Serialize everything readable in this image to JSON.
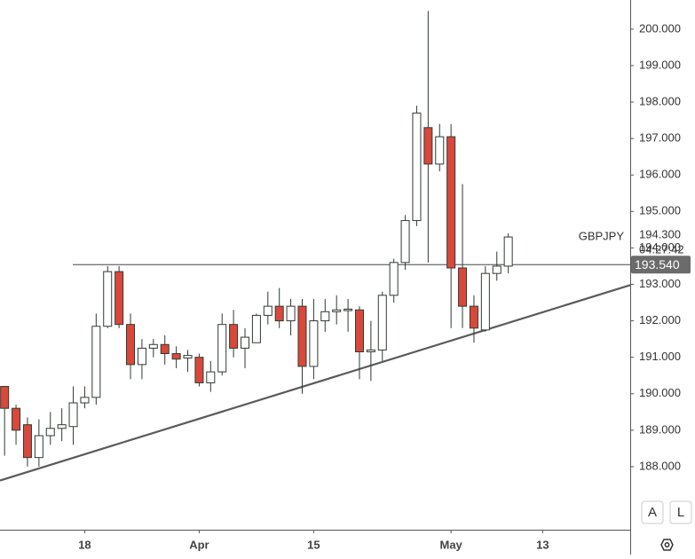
{
  "chart_data": {
    "type": "candlestick",
    "symbol": "GBPJPY",
    "countdown": "04:27:42",
    "up_color": "#ffffff",
    "down_color": "#d9483b",
    "outline_color": "#2f3a32",
    "xlim": [
      -0.4,
      54.65
    ],
    "ylim": [
      186.27,
      200.8
    ],
    "xticks": [
      {
        "value": 7,
        "label": "18"
      },
      {
        "value": 17,
        "label": "Apr"
      },
      {
        "value": 27,
        "label": "15"
      },
      {
        "value": 39,
        "label": "May"
      },
      {
        "value": 47,
        "label": "13"
      }
    ],
    "yticks": [
      {
        "value": 188,
        "label": "188.000"
      },
      {
        "value": 189,
        "label": "189.000"
      },
      {
        "value": 190,
        "label": "190.000"
      },
      {
        "value": 191,
        "label": "191.000"
      },
      {
        "value": 192,
        "label": "192.000"
      },
      {
        "value": 193,
        "label": "193.000"
      },
      {
        "value": 194,
        "label": "194.000"
      },
      {
        "value": 195,
        "label": "195.000"
      },
      {
        "value": 196,
        "label": "196.000"
      },
      {
        "value": 197,
        "label": "197.000"
      },
      {
        "value": 198,
        "label": "198.000"
      },
      {
        "value": 199,
        "label": "199.000"
      },
      {
        "value": 200,
        "label": "200.000"
      }
    ],
    "open": [
      190.2,
      189.6,
      189.15,
      188.25,
      188.85,
      189.05,
      189.1,
      189.75,
      189.9,
      191.85,
      193.35,
      191.9,
      190.8,
      191.25,
      191.35,
      191.1,
      190.98,
      191.0,
      190.3,
      190.6,
      191.9,
      191.25,
      191.4,
      192.15,
      192.4,
      192.0,
      192.4,
      190.75,
      192.0,
      192.25,
      192.28,
      192.3,
      191.15,
      191.2,
      192.7,
      193.6,
      194.75,
      197.3,
      196.3,
      197.05,
      193.45,
      192.4,
      191.75,
      193.3,
      193.5
    ],
    "high": [
      190.2,
      189.7,
      189.35,
      189.3,
      189.5,
      189.6,
      190.2,
      190.2,
      192.2,
      193.5,
      193.5,
      192.2,
      191.5,
      191.5,
      191.6,
      191.3,
      191.2,
      191.1,
      190.9,
      192.2,
      192.3,
      191.8,
      192.2,
      192.8,
      192.9,
      192.6,
      192.6,
      192.6,
      192.6,
      192.7,
      192.6,
      192.4,
      192.0,
      192.8,
      193.7,
      194.9,
      197.9,
      200.5,
      197.4,
      197.4,
      195.75,
      192.7,
      193.5,
      193.9,
      194.4
    ],
    "low": [
      188.3,
      188.6,
      188.0,
      188.0,
      188.6,
      188.7,
      188.6,
      189.6,
      189.7,
      191.8,
      191.8,
      190.4,
      190.4,
      191.0,
      190.8,
      190.7,
      190.6,
      190.2,
      190.05,
      190.5,
      191.0,
      190.7,
      191.4,
      191.9,
      191.8,
      191.6,
      190.0,
      190.4,
      191.7,
      191.9,
      191.7,
      190.4,
      190.35,
      190.9,
      192.5,
      193.4,
      194.6,
      193.6,
      196.1,
      191.8,
      191.8,
      191.4,
      191.7,
      193.1,
      193.3
    ],
    "close": [
      189.6,
      189.0,
      188.25,
      188.85,
      189.05,
      189.15,
      189.75,
      189.9,
      191.85,
      193.35,
      191.9,
      190.8,
      191.25,
      191.35,
      191.1,
      190.95,
      191.05,
      190.3,
      190.6,
      191.9,
      191.25,
      191.55,
      192.15,
      192.4,
      192.0,
      192.4,
      190.75,
      192.0,
      192.25,
      192.3,
      192.32,
      191.15,
      191.2,
      192.7,
      193.6,
      194.75,
      197.7,
      196.3,
      197.05,
      193.45,
      192.4,
      191.8,
      193.3,
      193.5,
      194.3
    ],
    "last_price": {
      "value": 194.3,
      "label": "194.300"
    },
    "horizontal_line": {
      "value": 193.54,
      "label": "193.540"
    },
    "trendline": {
      "x": [
        -0.4,
        54.65
      ],
      "y": [
        187.62,
        192.98
      ]
    }
  }
}
